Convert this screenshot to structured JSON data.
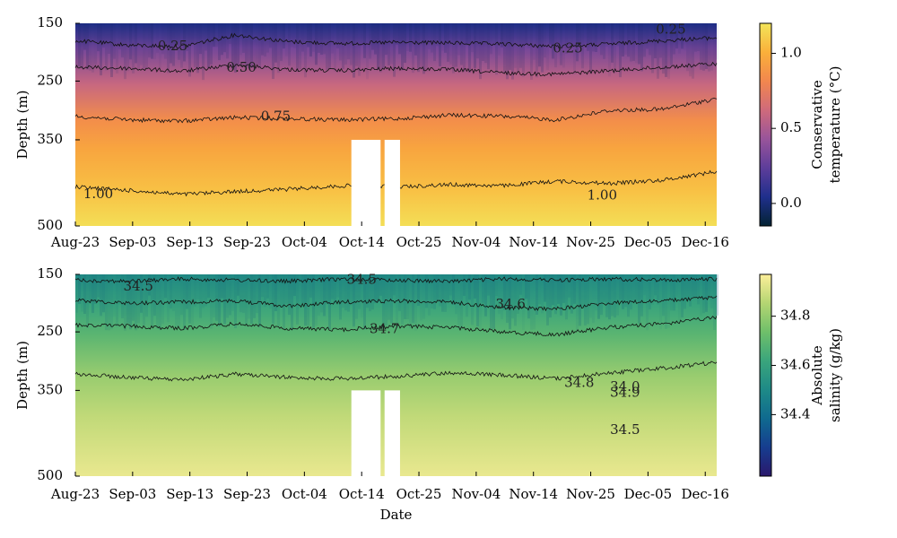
{
  "chart_data": [
    {
      "type": "heatmap",
      "panel": "temperature",
      "xlabel": "",
      "ylabel": "Depth (m)",
      "x_tick_labels": [
        "Aug-23",
        "Sep-03",
        "Sep-13",
        "Sep-23",
        "Oct-04",
        "Oct-14",
        "Oct-25",
        "Nov-04",
        "Nov-14",
        "Nov-25",
        "Dec-05",
        "Dec-16"
      ],
      "x_tick_values": [
        0,
        10,
        20,
        30,
        40,
        50,
        60,
        70,
        80,
        90,
        100,
        110
      ],
      "x_range": [
        0,
        112
      ],
      "y_tick_labels": [
        "150",
        "250",
        "350",
        "500"
      ],
      "y_tick_values": [
        150,
        250,
        350,
        500
      ],
      "y_range": [
        150,
        500
      ],
      "y_scale": "nonlinear (sqrt-like spacing)",
      "gaps": [
        {
          "x_start": 48.2,
          "x_end": 53.3,
          "depth_start": 350,
          "depth_end": 500
        },
        {
          "x_start": 54.0,
          "x_end": 56.7,
          "depth_start": 350,
          "depth_end": 500
        }
      ],
      "colormap": "thermal",
      "colorbar": {
        "label_lines": [
          "Conservative",
          "temperature (°C)"
        ],
        "range": [
          -0.15,
          1.2
        ],
        "ticks": [
          "0.0",
          "0.5",
          "1.0"
        ],
        "tick_values": [
          0.0,
          0.5,
          1.0
        ],
        "colors": [
          "#032333",
          "#1f2f8c",
          "#5d3d9a",
          "#98549a",
          "#cf6a7b",
          "#f2874e",
          "#fab03a",
          "#f3e55a"
        ]
      },
      "contours": [
        {
          "level": 0.25,
          "label": "0.25",
          "depth": [
            180,
            188,
            190,
            170,
            182,
            185,
            183,
            184,
            186,
            190,
            186,
            180,
            175
          ],
          "label_positions": [
            [
              17,
              190
            ],
            [
              86,
              194
            ],
            [
              104,
              162
            ]
          ]
        },
        {
          "level": 0.5,
          "label": "0.50",
          "depth": [
            226,
            228,
            233,
            222,
            230,
            232,
            228,
            230,
            236,
            238,
            232,
            226,
            220
          ],
          "label_positions": [
            [
              29,
              228
            ]
          ]
        },
        {
          "level": 0.75,
          "label": "0.75",
          "depth": [
            310,
            316,
            318,
            312,
            314,
            316,
            314,
            308,
            310,
            316,
            300,
            298,
            280
          ],
          "label_positions": [
            [
              35,
              311
            ]
          ]
        },
        {
          "level": 1.0,
          "label": "1.00",
          "depth": [
            432,
            438,
            445,
            440,
            436,
            430,
            432,
            428,
            430,
            422,
            426,
            420,
            405
          ],
          "label_positions": [
            [
              4,
              445
            ],
            [
              92,
              448
            ]
          ]
        }
      ]
    },
    {
      "type": "heatmap",
      "panel": "salinity",
      "xlabel": "Date",
      "ylabel": "Depth (m)",
      "x_tick_labels": [
        "Aug-23",
        "Sep-03",
        "Sep-13",
        "Sep-23",
        "Oct-04",
        "Oct-14",
        "Oct-25",
        "Nov-04",
        "Nov-14",
        "Nov-25",
        "Dec-05",
        "Dec-16"
      ],
      "x_tick_values": [
        0,
        10,
        20,
        30,
        40,
        50,
        60,
        70,
        80,
        90,
        100,
        110
      ],
      "x_range": [
        0,
        112
      ],
      "y_tick_labels": [
        "150",
        "250",
        "350",
        "500"
      ],
      "y_tick_values": [
        150,
        250,
        350,
        500
      ],
      "y_range": [
        150,
        500
      ],
      "y_scale": "nonlinear (sqrt-like spacing)",
      "gaps": [
        {
          "x_start": 48.2,
          "x_end": 53.3,
          "depth_start": 350,
          "depth_end": 500
        },
        {
          "x_start": 54.0,
          "x_end": 56.7,
          "depth_start": 350,
          "depth_end": 500
        }
      ],
      "colormap": "haline",
      "colorbar": {
        "label_lines": [
          "Absolute",
          "salinity (g/kg)"
        ],
        "range": [
          34.15,
          34.97
        ],
        "ticks": [
          "34.4",
          "34.6",
          "34.8"
        ],
        "tick_values": [
          34.4,
          34.6,
          34.8
        ],
        "colors": [
          "#2a186c",
          "#163d8f",
          "#0f6a8f",
          "#1e8a87",
          "#3aa57c",
          "#6fbf6a",
          "#b4d572",
          "#fdef9a"
        ]
      },
      "contours": [
        {
          "level": 34.5,
          "label": "34.5",
          "depth": [
            160,
            162,
            158,
            160,
            162,
            158,
            160,
            162,
            158,
            160,
            158,
            160,
            158
          ],
          "label_positions": [
            [
              11,
              172
            ],
            [
              50,
              160
            ],
            [
              96,
              420
            ]
          ]
        },
        {
          "level": 34.6,
          "label": "34.6",
          "depth": [
            195,
            200,
            198,
            196,
            205,
            198,
            196,
            198,
            208,
            210,
            200,
            196,
            190
          ],
          "label_positions": [
            [
              76,
              203
            ]
          ]
        },
        {
          "level": 34.7,
          "label": "34.7",
          "depth": [
            238,
            240,
            244,
            236,
            244,
            246,
            240,
            242,
            250,
            255,
            242,
            236,
            225
          ],
          "label_positions": [
            [
              54,
              246
            ]
          ]
        },
        {
          "level": 34.8,
          "label": "34.8",
          "depth": [
            322,
            328,
            332,
            322,
            328,
            330,
            326,
            320,
            324,
            330,
            320,
            312,
            302
          ],
          "label_positions": [
            [
              88,
              338
            ]
          ]
        },
        {
          "level": 34.9,
          "label": "34.9",
          "depth": [
            250,
            250,
            250
          ],
          "label_positions": [
            [
              96,
              355
            ]
          ]
        },
        {
          "level": 34.0,
          "label": "34.0",
          "depth": [
            300,
            300,
            300
          ],
          "label_positions": [
            [
              96,
              345
            ]
          ]
        }
      ]
    }
  ]
}
